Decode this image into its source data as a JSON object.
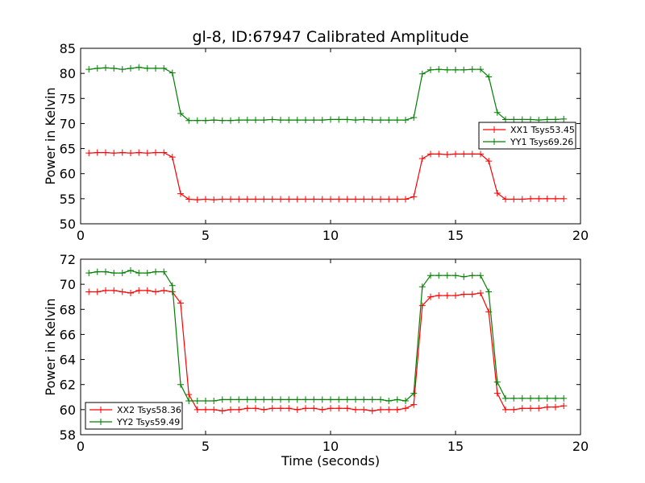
{
  "title": "gl-8, ID:67947 Calibrated Amplitude",
  "colors": {
    "xx": "#ff0000",
    "yy": "#008000",
    "axes": "#000000",
    "background": "#ffffff"
  },
  "chart_data": [
    {
      "type": "line",
      "xlabel": "",
      "ylabel": "Power in Kelvin",
      "xlim": [
        0,
        20
      ],
      "ylim": [
        50,
        85
      ],
      "xticks": [
        0,
        5,
        10,
        15,
        20
      ],
      "yticks": [
        50,
        55,
        60,
        65,
        70,
        75,
        80,
        85
      ],
      "grid": false,
      "legend": "center-right",
      "x": [
        0.33,
        0.67,
        1.0,
        1.33,
        1.67,
        2.0,
        2.33,
        2.67,
        3.0,
        3.33,
        3.67,
        4.0,
        4.33,
        4.67,
        5.0,
        5.33,
        5.67,
        6.0,
        6.33,
        6.67,
        7.0,
        7.33,
        7.67,
        8.0,
        8.33,
        8.67,
        9.0,
        9.33,
        9.67,
        10.0,
        10.33,
        10.67,
        11.0,
        11.33,
        11.67,
        12.0,
        12.33,
        12.67,
        13.0,
        13.33,
        13.67,
        14.0,
        14.33,
        14.67,
        15.0,
        15.33,
        15.67,
        16.0,
        16.33,
        16.67,
        17.0,
        17.33,
        17.67,
        18.0,
        18.33,
        18.67,
        19.0,
        19.33
      ],
      "series": [
        {
          "name": "XX1 Tsys53.45",
          "color": "#ff0000",
          "values": [
            64.1,
            64.2,
            64.2,
            64.1,
            64.2,
            64.1,
            64.2,
            64.1,
            64.2,
            64.2,
            63.3,
            56.0,
            54.9,
            54.8,
            54.9,
            54.8,
            54.9,
            54.9,
            54.9,
            54.9,
            54.9,
            54.9,
            54.9,
            54.9,
            54.9,
            54.9,
            54.9,
            54.9,
            54.9,
            54.9,
            54.9,
            54.9,
            54.9,
            54.9,
            54.9,
            54.9,
            54.9,
            54.9,
            54.9,
            55.4,
            63.0,
            63.9,
            63.9,
            63.8,
            63.9,
            63.9,
            63.9,
            63.9,
            62.5,
            56.1,
            54.9,
            54.9,
            54.9,
            55.0,
            55.0,
            55.0,
            55.0,
            55.0
          ]
        },
        {
          "name": "YY1 Tsys69.26",
          "color": "#008000",
          "values": [
            80.8,
            81.0,
            81.1,
            81.0,
            80.8,
            81.0,
            81.2,
            81.0,
            81.0,
            81.0,
            80.1,
            72.0,
            70.6,
            70.6,
            70.6,
            70.7,
            70.6,
            70.6,
            70.7,
            70.7,
            70.7,
            70.7,
            70.8,
            70.7,
            70.7,
            70.7,
            70.7,
            70.7,
            70.7,
            70.8,
            70.8,
            70.8,
            70.7,
            70.8,
            70.7,
            70.7,
            70.7,
            70.7,
            70.7,
            71.2,
            79.9,
            80.7,
            80.8,
            80.7,
            80.7,
            80.7,
            80.8,
            80.8,
            79.3,
            72.2,
            70.8,
            70.8,
            70.8,
            70.8,
            70.7,
            70.8,
            70.8,
            70.9
          ]
        }
      ]
    },
    {
      "type": "line",
      "xlabel": "Time (seconds)",
      "ylabel": "Power in Kelvin",
      "xlim": [
        0,
        20
      ],
      "ylim": [
        58,
        72
      ],
      "xticks": [
        0,
        5,
        10,
        15,
        20
      ],
      "yticks": [
        58,
        60,
        62,
        64,
        66,
        68,
        70,
        72
      ],
      "grid": false,
      "legend": "lower-left",
      "x": [
        0.33,
        0.67,
        1.0,
        1.33,
        1.67,
        2.0,
        2.33,
        2.67,
        3.0,
        3.33,
        3.67,
        4.0,
        4.33,
        4.67,
        5.0,
        5.33,
        5.67,
        6.0,
        6.33,
        6.67,
        7.0,
        7.33,
        7.67,
        8.0,
        8.33,
        8.67,
        9.0,
        9.33,
        9.67,
        10.0,
        10.33,
        10.67,
        11.0,
        11.33,
        11.67,
        12.0,
        12.33,
        12.67,
        13.0,
        13.33,
        13.67,
        14.0,
        14.33,
        14.67,
        15.0,
        15.33,
        15.67,
        16.0,
        16.33,
        16.67,
        17.0,
        17.33,
        17.67,
        18.0,
        18.33,
        18.67,
        19.0,
        19.33
      ],
      "series": [
        {
          "name": "XX2 Tsys58.36",
          "color": "#ff0000",
          "values": [
            69.4,
            69.4,
            69.5,
            69.5,
            69.4,
            69.3,
            69.5,
            69.5,
            69.4,
            69.5,
            69.4,
            68.5,
            61.2,
            60.0,
            60.0,
            60.0,
            59.9,
            60.0,
            60.0,
            60.1,
            60.1,
            60.0,
            60.1,
            60.1,
            60.1,
            60.0,
            60.1,
            60.1,
            60.0,
            60.1,
            60.1,
            60.1,
            60.0,
            60.0,
            59.9,
            60.0,
            60.0,
            60.0,
            60.1,
            60.4,
            68.3,
            69.0,
            69.1,
            69.1,
            69.1,
            69.2,
            69.2,
            69.3,
            67.8,
            61.3,
            60.0,
            60.0,
            60.1,
            60.1,
            60.1,
            60.2,
            60.2,
            60.3
          ]
        },
        {
          "name": "YY2 Tsys59.49",
          "color": "#008000",
          "values": [
            70.9,
            71.0,
            71.0,
            70.9,
            70.9,
            71.1,
            70.9,
            70.9,
            71.0,
            71.0,
            69.9,
            62.0,
            60.7,
            60.7,
            60.7,
            60.7,
            60.8,
            60.8,
            60.8,
            60.8,
            60.8,
            60.8,
            60.8,
            60.8,
            60.8,
            60.8,
            60.8,
            60.8,
            60.8,
            60.8,
            60.8,
            60.8,
            60.8,
            60.8,
            60.8,
            60.8,
            60.7,
            60.8,
            60.7,
            61.3,
            69.8,
            70.7,
            70.7,
            70.7,
            70.7,
            70.6,
            70.7,
            70.7,
            69.4,
            62.2,
            60.9,
            60.9,
            60.9,
            60.9,
            60.9,
            60.9,
            60.9,
            60.9
          ]
        }
      ]
    }
  ]
}
